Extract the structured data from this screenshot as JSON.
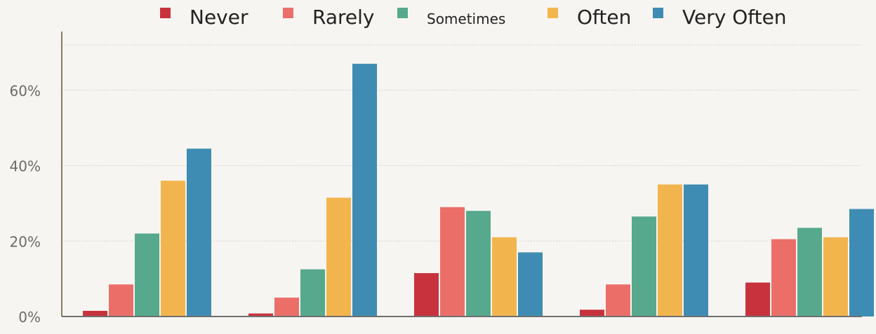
{
  "chart_data": {
    "type": "bar",
    "categories": [
      "",
      "",
      "",
      "",
      ""
    ],
    "series": [
      {
        "name": "Never",
        "color": "#c8323d",
        "values": [
          1.5,
          0.8,
          11.5,
          1.8,
          9.0
        ]
      },
      {
        "name": "Rarely",
        "color": "#ec6e68",
        "values": [
          8.5,
          5.0,
          29.0,
          8.5,
          20.5
        ]
      },
      {
        "name": "Sometimes",
        "color": "#56a98c",
        "values": [
          22.0,
          12.5,
          28.0,
          26.5,
          23.5
        ]
      },
      {
        "name": "Often",
        "color": "#f2b54e",
        "values": [
          36.0,
          31.5,
          21.0,
          35.0,
          21.0
        ]
      },
      {
        "name": "Very Often",
        "color": "#3e8cb3",
        "values": [
          44.5,
          67.0,
          17.0,
          35.0,
          28.5
        ]
      }
    ],
    "ylim": [
      0,
      75
    ],
    "yticks": [
      {
        "value": 0,
        "label": "0%"
      },
      {
        "value": 20,
        "label": "20%"
      },
      {
        "value": 40,
        "label": "40%"
      },
      {
        "value": 60,
        "label": "60%"
      }
    ],
    "grid": true,
    "legend_position": "top",
    "title": "",
    "xlabel": "",
    "ylabel": ""
  }
}
